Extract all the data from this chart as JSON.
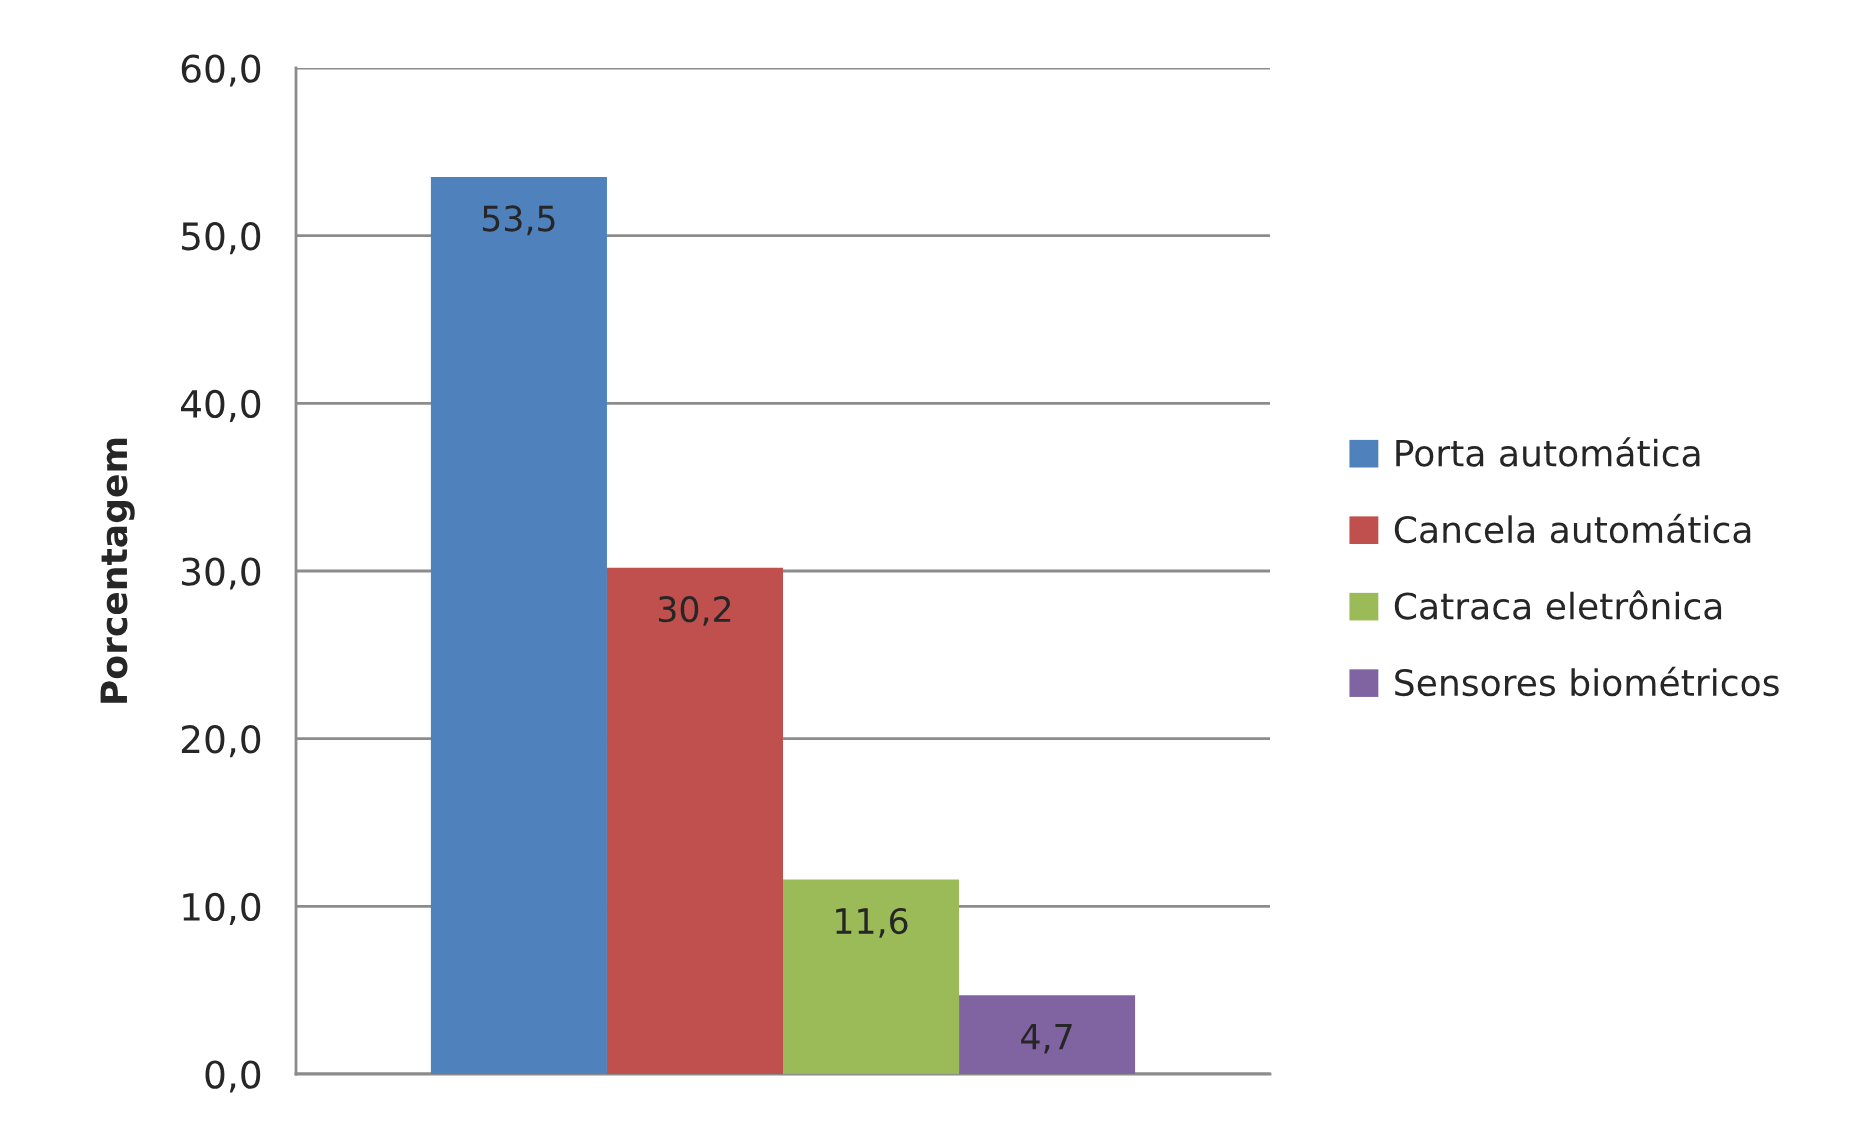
{
  "chart_data": {
    "type": "bar",
    "ylabel": "Porcentagem",
    "categories": [
      null
    ],
    "series": [
      {
        "name": "Porta automática",
        "color": "#4f81bd",
        "values": [
          53.5
        ],
        "value_labels": [
          "53,5"
        ]
      },
      {
        "name": "Cancela automática",
        "color": "#c0504d",
        "values": [
          30.2
        ],
        "value_labels": [
          "30,2"
        ]
      },
      {
        "name": "Catraca eletrônica",
        "color": "#9bbb59",
        "values": [
          11.6
        ],
        "value_labels": [
          "11,6"
        ]
      },
      {
        "name": "Sensores biométricos",
        "color": "#8064a2",
        "values": [
          4.7
        ],
        "value_labels": [
          "4,7"
        ]
      }
    ],
    "ylim": [
      0,
      60
    ],
    "yticks": [
      {
        "value": 0,
        "label": "0,0"
      },
      {
        "value": 10,
        "label": "10,0"
      },
      {
        "value": 20,
        "label": "20,0"
      },
      {
        "value": 30,
        "label": "30,0"
      },
      {
        "value": 40,
        "label": "40,0"
      },
      {
        "value": 50,
        "label": "50,0"
      },
      {
        "value": 60,
        "label": "60,0"
      }
    ],
    "grid": "y",
    "legend": "right"
  }
}
